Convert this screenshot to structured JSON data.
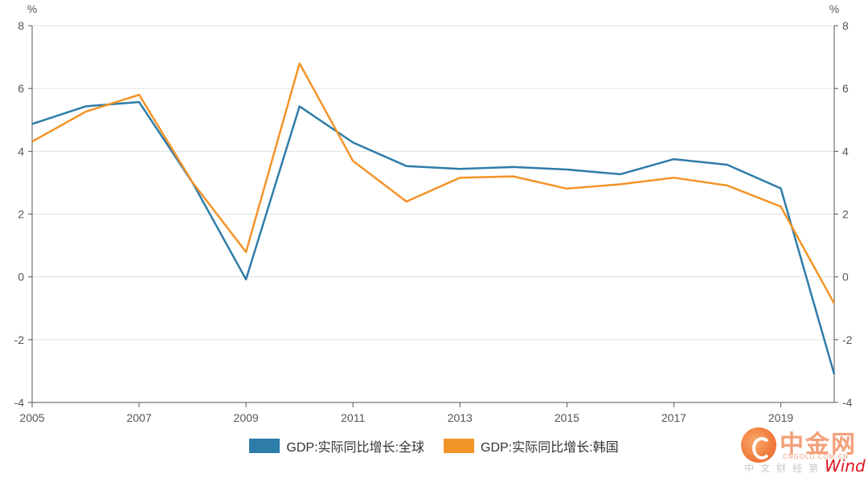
{
  "chart_data": {
    "type": "line",
    "x": [
      2005,
      2006,
      2007,
      2008,
      2009,
      2010,
      2011,
      2012,
      2013,
      2014,
      2015,
      2016,
      2017,
      2018,
      2019,
      2020
    ],
    "xticks": [
      "2005",
      "2007",
      "2009",
      "2011",
      "2013",
      "2015",
      "2017",
      "2019"
    ],
    "series": [
      {
        "name": "GDP:实际同比增长:全球",
        "color": "#2e7ca8",
        "values": [
          4.87,
          5.43,
          5.57,
          3.0,
          -0.08,
          5.43,
          4.28,
          3.53,
          3.44,
          3.5,
          3.42,
          3.27,
          3.75,
          3.57,
          2.82,
          -3.1
        ]
      },
      {
        "name": "GDP:实际同比增长:韩国",
        "color": "#f39429",
        "values": [
          4.31,
          5.26,
          5.8,
          3.01,
          0.79,
          6.8,
          3.69,
          2.4,
          3.16,
          3.2,
          2.81,
          2.95,
          3.16,
          2.91,
          2.24,
          -0.85
        ]
      }
    ],
    "yunit_left": "%",
    "yunit_right": "%",
    "ylim": [
      -4,
      8
    ],
    "yticks": [
      -4,
      -2,
      0,
      2,
      4,
      6,
      8
    ],
    "grid": true,
    "legend_position": "bottom"
  },
  "watermark": {
    "brand": "中金网",
    "domain": "CNGOLD.COM.CN",
    "tagline": "中文财经第一",
    "wind": "Wind"
  }
}
